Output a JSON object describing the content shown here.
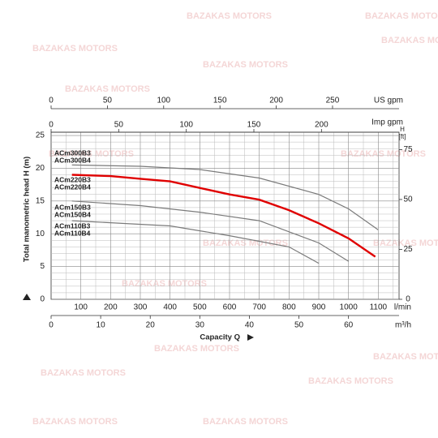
{
  "chart_data": {
    "type": "line",
    "watermark": "BAZAKAS MOTORS",
    "ylabel": "Total manometric head H (m)",
    "xlabel": "Capacity Q",
    "xunit": "l/min",
    "xlim": [
      0,
      1170
    ],
    "xticks": [
      100,
      200,
      300,
      400,
      500,
      600,
      700,
      800,
      900,
      1000,
      1100
    ],
    "minor_xticks": [
      50,
      150,
      250,
      350,
      450,
      550,
      650,
      750,
      850,
      950,
      1050,
      1150
    ],
    "ylim": [
      0,
      25.5
    ],
    "yticks": [
      0,
      5,
      10,
      15,
      20,
      25
    ],
    "minor_yticks": [
      1,
      2,
      3,
      4,
      6,
      7,
      8,
      9,
      11,
      12,
      13,
      14,
      16,
      17,
      18,
      19,
      21,
      22,
      23,
      24
    ],
    "grid": true,
    "top_axis": {
      "label": "US gpm",
      "lim": [
        0,
        309.1
      ],
      "ticks": [
        0,
        50,
        100,
        150,
        200,
        250
      ]
    },
    "second_top_axis": {
      "label": "Imp gpm",
      "lim": [
        0,
        257.4
      ],
      "ticks": [
        0,
        50,
        100,
        150,
        200
      ]
    },
    "bottom_axis": {
      "label": "m³/h",
      "lim": [
        0,
        70.2
      ],
      "ticks": [
        0,
        10,
        20,
        30,
        40,
        50,
        60
      ]
    },
    "right_axis": {
      "label": "H",
      "unit": "[ft]",
      "lim": [
        0,
        83.7
      ],
      "ticks": [
        0,
        25,
        50,
        75
      ]
    },
    "series": [
      {
        "labels": [
          "ACm300B3",
          "ACm300B4"
        ],
        "color": "#7a7a7a",
        "x": [
          70,
          300,
          500,
          700,
          900,
          1000,
          1100
        ],
        "values": [
          20.5,
          20.3,
          19.8,
          18.5,
          16.0,
          13.8,
          10.6
        ]
      },
      {
        "labels": [
          "ACm220B3",
          "ACm220B4"
        ],
        "color": "#e00000",
        "x": [
          70,
          200,
          300,
          400,
          500,
          600,
          700,
          800,
          900,
          1000,
          1090
        ],
        "values": [
          19.0,
          18.8,
          18.4,
          18.0,
          17.0,
          16.0,
          15.2,
          13.6,
          11.6,
          9.3,
          6.5
        ]
      },
      {
        "labels": [
          "ACm150B3",
          "ACm150B4"
        ],
        "color": "#7a7a7a",
        "x": [
          70,
          300,
          500,
          700,
          900,
          1000
        ],
        "values": [
          15.0,
          14.3,
          13.3,
          12.0,
          8.6,
          5.8
        ]
      },
      {
        "labels": [
          "ACm110B3",
          "ACm110B4"
        ],
        "color": "#7a7a7a",
        "x": [
          70,
          400,
          600,
          800,
          900
        ],
        "values": [
          12.0,
          11.2,
          9.7,
          8.0,
          5.5
        ]
      }
    ]
  }
}
